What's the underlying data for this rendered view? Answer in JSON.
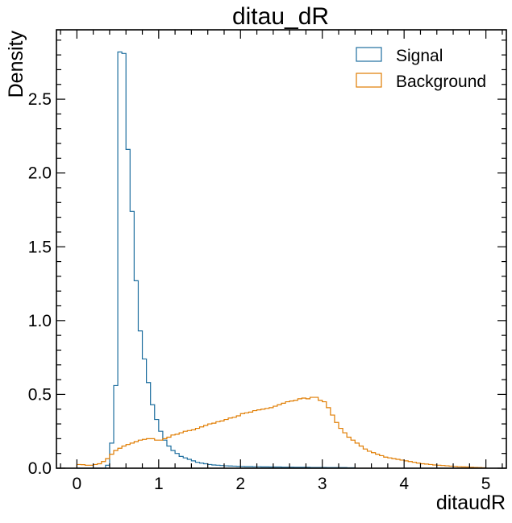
{
  "chart_data": {
    "type": "histogram-step",
    "title": "ditau_dR",
    "xlabel": "ditaudR",
    "ylabel": "Density",
    "xlim": [
      -0.25,
      5.25
    ],
    "ylim": [
      0,
      2.97
    ],
    "grid": false,
    "legend_position": "top-right",
    "x_ticks": [
      0,
      1,
      2,
      3,
      4,
      5
    ],
    "x_tick_labels": [
      "0",
      "1",
      "2",
      "3",
      "4",
      "5"
    ],
    "y_ticks": [
      0.0,
      0.5,
      1.0,
      1.5,
      2.0,
      2.5
    ],
    "y_tick_labels": [
      "0.0",
      "0.5",
      "1.0",
      "1.5",
      "2.0",
      "2.5"
    ],
    "bin_edges_start": 0,
    "bin_width": 0.05,
    "series": [
      {
        "name": "Signal",
        "color": "#1f6f9f",
        "values": [
          0,
          0,
          0,
          0,
          0,
          0,
          0,
          0.02,
          0.17,
          0.56,
          2.82,
          2.81,
          2.16,
          1.74,
          1.27,
          0.93,
          0.74,
          0.58,
          0.43,
          0.33,
          0.25,
          0.19,
          0.15,
          0.12,
          0.1,
          0.08,
          0.07,
          0.06,
          0.05,
          0.04,
          0.035,
          0.03,
          0.025,
          0.022,
          0.02,
          0.018,
          0.016,
          0.015,
          0.014,
          0.013,
          0.012,
          0.011,
          0.011,
          0.01,
          0.01,
          0.009,
          0.009,
          0.008,
          0.008,
          0.008,
          0.007,
          0.007,
          0.007,
          0.006,
          0.006,
          0.006,
          0.006,
          0.005,
          0.005,
          0.005,
          0.005,
          0.004,
          0.004,
          0.004,
          0.004,
          0.004,
          0.003,
          0.003
        ]
      },
      {
        "name": "Background",
        "color": "#e07c00",
        "values": [
          0.025,
          0.024,
          0.02,
          0.02,
          0.025,
          0.03,
          0.045,
          0.065,
          0.095,
          0.12,
          0.135,
          0.15,
          0.16,
          0.17,
          0.18,
          0.19,
          0.195,
          0.2,
          0.2,
          0.19,
          0.19,
          0.2,
          0.21,
          0.225,
          0.23,
          0.24,
          0.25,
          0.255,
          0.26,
          0.27,
          0.28,
          0.29,
          0.3,
          0.305,
          0.315,
          0.32,
          0.33,
          0.34,
          0.345,
          0.355,
          0.37,
          0.375,
          0.38,
          0.39,
          0.395,
          0.4,
          0.405,
          0.41,
          0.42,
          0.43,
          0.44,
          0.45,
          0.455,
          0.46,
          0.47,
          0.475,
          0.47,
          0.48,
          0.48,
          0.46,
          0.45,
          0.41,
          0.36,
          0.31,
          0.27,
          0.24,
          0.21,
          0.19,
          0.17,
          0.15,
          0.13,
          0.115,
          0.105,
          0.095,
          0.085,
          0.075,
          0.07,
          0.065,
          0.06,
          0.055,
          0.05,
          0.045,
          0.04,
          0.035,
          0.03,
          0.028,
          0.025,
          0.022,
          0.02,
          0.018,
          0.016,
          0.014,
          0.012,
          0.01,
          0.009,
          0.008,
          0.006,
          0.005,
          0.004,
          0.003
        ]
      }
    ]
  }
}
